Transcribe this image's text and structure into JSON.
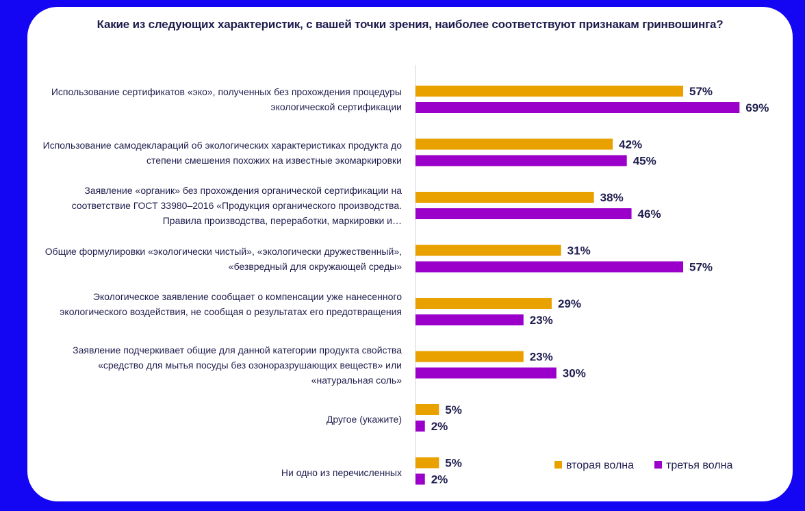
{
  "chart_data": {
    "type": "bar",
    "orientation": "horizontal",
    "title": "Какие из следующих характеристик, с вашей точки зрения, наиболее соответствуют признакам гринвошинга?",
    "categories": [
      "Использование сертификатов «эко», полученных без прохождения процедуры экологической сертификации",
      "Использование самодеклараций об экологических характеристиках продукта до степени смешения похожих на известные экомаркировки",
      "Заявление «органик» без прохождения органической сертификации на соответствие ГОСТ 33980–2016 «Продукция органического производства. Правила производства, переработки, маркировки и…",
      "Общие формулировки «экологически чистый», «экологически дружественный», «безвредный для окружающей среды»",
      "Экологическое заявление сообщает о компенсации уже нанесенного экологического воздействия, не сообщая о результатах его предотвращения",
      "Заявление подчеркивает общие для данной категории продукта свойства «средство для мытья посуды без озоноразрушающих веществ» или «натуральная соль»",
      "Другое (укажите)",
      "Ни одно из перечисленных"
    ],
    "series": [
      {
        "name": "вторая волна",
        "color": "#e9a100",
        "values": [
          57,
          42,
          38,
          31,
          29,
          23,
          5,
          5
        ]
      },
      {
        "name": "третья волна",
        "color": "#9a00c9",
        "values": [
          69,
          45,
          46,
          57,
          23,
          30,
          2,
          2
        ]
      }
    ],
    "value_suffix": "%",
    "legend_position": "bottom-right",
    "grid": false
  }
}
